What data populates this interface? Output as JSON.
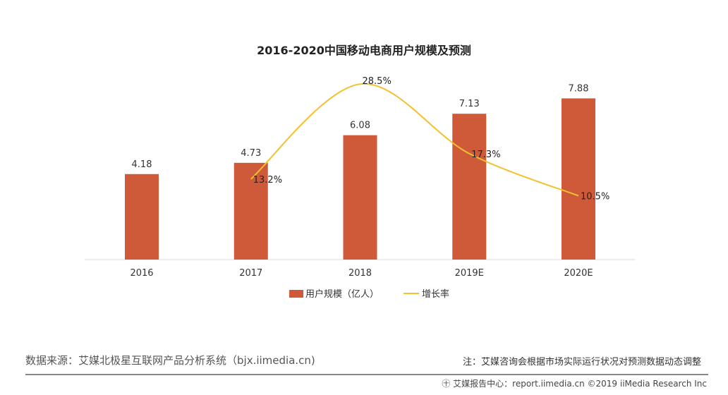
{
  "chart_data": {
    "type": "bar+line",
    "title": "2016-2020中国移动电商用户规模及预测",
    "categories": [
      "2016",
      "2017",
      "2018",
      "2019E",
      "2020E"
    ],
    "series": [
      {
        "name": "用户规模（亿人）",
        "type": "bar",
        "color": "#cf5a3a",
        "values": [
          4.18,
          4.73,
          6.08,
          7.13,
          7.88
        ],
        "labels": [
          "4.18",
          "4.73",
          "6.08",
          "7.13",
          "7.88"
        ]
      },
      {
        "name": "增长率",
        "type": "line",
        "color": "#f2c12e",
        "values": [
          null,
          13.2,
          28.5,
          17.3,
          10.5
        ],
        "labels": [
          "",
          "13.2%",
          "28.5%",
          "17.3%",
          "10.5%"
        ]
      }
    ],
    "legend": "bottom",
    "grid": false
  },
  "footer": {
    "source": "数据来源：艾媒北极星互联网产品分析系统（bjx.iimedia.cn)",
    "note": "注：艾媒咨询会根据市场实际运行状况对预测数据动态调整",
    "credit": "艾媒报告中心：report.iimedia.cn  ©2019  iiMedia Research  Inc"
  }
}
